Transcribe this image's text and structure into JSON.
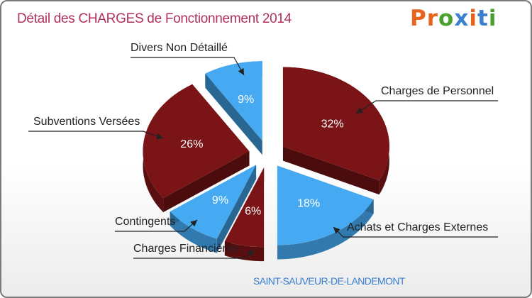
{
  "title": "Détail des CHARGES de Fonctionnement 2014",
  "subtitle": "SAINT-SAUVEUR-DE-LANDEMONT",
  "logo": {
    "letters": [
      "P",
      "r",
      "o",
      "x",
      "i",
      "t",
      "i"
    ],
    "colors": [
      "#e8641e",
      "#e8641e",
      "#4aa02c",
      "#3a7fd0",
      "#e8641e",
      "#3a7fd0",
      "#4aa02c"
    ]
  },
  "colors": {
    "dark_red": "#7b1416",
    "blue": "#45aaf2"
  },
  "chart_data": {
    "type": "pie",
    "style": "exploded-3d",
    "slices": [
      {
        "label": "Charges de Personnel",
        "value": 32,
        "value_label": "32%",
        "color": "#7b1416"
      },
      {
        "label": "Achats et Charges Externes",
        "value": 18,
        "value_label": "18%",
        "color": "#45aaf2"
      },
      {
        "label": "Charges Financières",
        "value": 6,
        "value_label": "6%",
        "color": "#7b1416"
      },
      {
        "label": "Contingents",
        "value": 9,
        "value_label": "9%",
        "color": "#45aaf2"
      },
      {
        "label": "Subventions Versées",
        "value": 26,
        "value_label": "26%",
        "color": "#7b1416"
      },
      {
        "label": "Divers Non Détaillé",
        "value": 9,
        "value_label": "9%",
        "color": "#45aaf2"
      }
    ]
  }
}
